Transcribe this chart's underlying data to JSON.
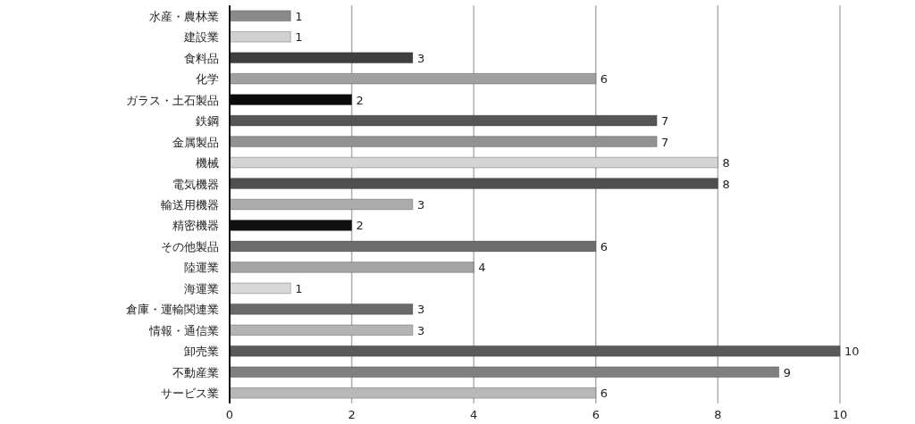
{
  "chart_data": {
    "type": "bar",
    "orientation": "horizontal",
    "categories": [
      "水産・農林業",
      "建設業",
      "食料品",
      "化学",
      "ガラス・土石製品",
      "鉄鋼",
      "金属製品",
      "機械",
      "電気機器",
      "輸送用機器",
      "精密機器",
      "その他製品",
      "陸運業",
      "海運業",
      "倉庫・運輸関連業",
      "情報・通信業",
      "卸売業",
      "不動産業",
      "サービス業"
    ],
    "values": [
      1,
      1,
      3,
      6,
      2,
      7,
      7,
      8,
      8,
      3,
      2,
      6,
      4,
      1,
      3,
      3,
      10,
      9,
      6
    ],
    "colors": [
      "#8a8a8a",
      "#d0d0d0",
      "#3f3f3f",
      "#a0a0a0",
      "#0a0a0a",
      "#555555",
      "#929292",
      "#d4d4d4",
      "#505050",
      "#ababab",
      "#111111",
      "#6c6c6c",
      "#a4a4a4",
      "#d8d8d8",
      "#6a6a6a",
      "#b4b4b4",
      "#5a5a5a",
      "#808080",
      "#b8b8b8"
    ],
    "xlim": [
      0,
      10
    ],
    "xticks": [
      0,
      2,
      4,
      6,
      8,
      10
    ],
    "grid": "x",
    "data_labels": true
  }
}
